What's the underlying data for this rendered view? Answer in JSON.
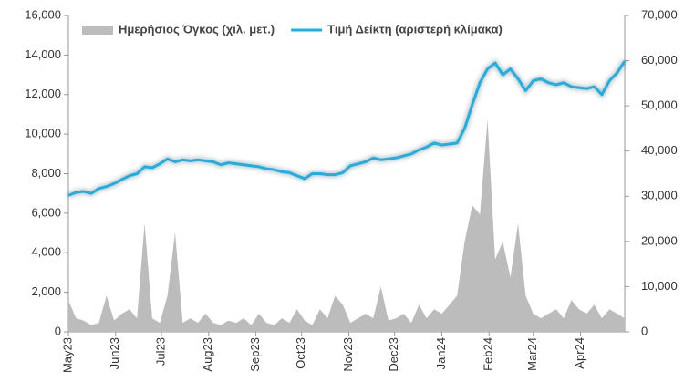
{
  "chart_data": {
    "type": "line",
    "x": [
      0,
      5,
      10,
      15,
      20,
      25,
      30,
      35,
      40,
      45,
      50,
      55,
      60,
      65,
      70,
      75,
      80,
      85,
      90,
      95,
      100,
      105,
      110,
      115,
      120,
      125,
      130,
      135,
      140,
      145,
      150,
      155,
      160,
      165,
      170,
      175,
      180,
      185,
      190,
      195,
      200,
      205,
      210,
      215,
      220,
      225,
      230,
      235,
      240,
      245,
      250,
      255,
      260,
      265,
      270,
      275,
      280,
      285,
      290,
      295,
      300,
      305,
      310,
      315,
      320,
      325,
      330,
      335,
      340,
      345,
      350,
      355,
      360,
      365
    ],
    "xlim": [
      0,
      365
    ],
    "xticks": [
      {
        "value": 0,
        "label": "May23"
      },
      {
        "value": 31,
        "label": "Jun23"
      },
      {
        "value": 61,
        "label": "Jul23"
      },
      {
        "value": 92,
        "label": "Aug23"
      },
      {
        "value": 123,
        "label": "Sep23"
      },
      {
        "value": 153,
        "label": "Oct23"
      },
      {
        "value": 184,
        "label": "Nov23"
      },
      {
        "value": 214,
        "label": "Dec23"
      },
      {
        "value": 245,
        "label": "Jan24"
      },
      {
        "value": 276,
        "label": "Feb24"
      },
      {
        "value": 305,
        "label": "Mar24"
      },
      {
        "value": 336,
        "label": "Apr24"
      }
    ],
    "ylim": [
      0,
      16000
    ],
    "yticks": [
      0,
      {
        "value": 2000,
        "label": "2,000"
      },
      {
        "value": 4000,
        "label": "4,000"
      },
      {
        "value": 6000,
        "label": "6,000"
      },
      {
        "value": 8000,
        "label": "8,000"
      },
      {
        "value": 10000,
        "label": "10,000"
      },
      {
        "value": 12000,
        "label": "12,000"
      },
      {
        "value": 14000,
        "label": "14,000"
      },
      {
        "value": 16000,
        "label": "16,000"
      }
    ],
    "y2lim": [
      0,
      70000
    ],
    "y2ticks": [
      0,
      {
        "value": 10000,
        "label": "10,000"
      },
      {
        "value": 20000,
        "label": "20,000"
      },
      {
        "value": 30000,
        "label": "30,000"
      },
      {
        "value": 40000,
        "label": "40,000"
      },
      {
        "value": 50000,
        "label": "50,000"
      },
      {
        "value": 60000,
        "label": "60,000"
      },
      {
        "value": 70000,
        "label": "70,000"
      }
    ],
    "legend": "top-left",
    "series": [
      {
        "name": "Ημερήσιος Όγκος (χιλ. μετ.)",
        "color": "#bcbcbc",
        "type": "area",
        "axis": "y2",
        "values": [
          7000,
          3000,
          2500,
          1500,
          2000,
          8000,
          2500,
          4000,
          5000,
          3000,
          24000,
          3000,
          2000,
          8000,
          22000,
          2000,
          3000,
          2000,
          4000,
          2000,
          1500,
          2500,
          2000,
          3000,
          1500,
          4000,
          2000,
          1500,
          3000,
          2000,
          5000,
          2500,
          1500,
          5000,
          3000,
          8000,
          6000,
          2000,
          3000,
          4000,
          3000,
          10000,
          2500,
          3000,
          4000,
          2000,
          6000,
          3000,
          5000,
          4000,
          6000,
          8000,
          20000,
          28000,
          26000,
          47000,
          16000,
          20000,
          12000,
          24000,
          8000,
          4000,
          3000,
          4000,
          5000,
          3000,
          7000,
          5000,
          4000,
          6000,
          3000,
          5000,
          4000,
          3000
        ]
      },
      {
        "name": "Τιμή Δείκτη (αριστερή κλίμακα)",
        "color": "#1ab0e8",
        "type": "line",
        "values": [
          6900,
          7050,
          7100,
          7000,
          7250,
          7350,
          7500,
          7700,
          7900,
          8000,
          8350,
          8300,
          8500,
          8750,
          8600,
          8700,
          8650,
          8700,
          8650,
          8600,
          8450,
          8550,
          8500,
          8450,
          8400,
          8350,
          8250,
          8200,
          8100,
          8050,
          7900,
          7750,
          8000,
          8000,
          7950,
          7950,
          8050,
          8400,
          8500,
          8600,
          8800,
          8700,
          8750,
          8800,
          8900,
          9000,
          9200,
          9350,
          9550,
          9450,
          9500,
          9550,
          10300,
          11500,
          12600,
          13300,
          13600,
          13000,
          13300,
          12800,
          12200,
          12700,
          12800,
          12600,
          12500,
          12600,
          12400,
          12350,
          12300,
          12400,
          12000,
          12700,
          13100,
          13700
        ]
      }
    ]
  }
}
